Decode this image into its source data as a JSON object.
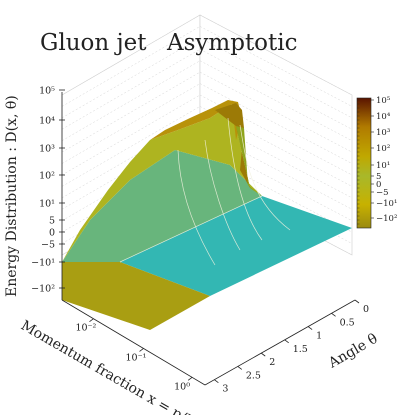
{
  "chart_data": {
    "type": "surface3d",
    "title_left": "Gluon jet",
    "title_right": "Asymptotic",
    "zlabel": "Energy Distribution : D(x, θ)",
    "xlabel": "Momentum fraction x = p/E",
    "ylabel": "Angle θ",
    "x_scale": "log",
    "x_ticks": [
      "10⁻²",
      "10⁻¹",
      "10⁰"
    ],
    "y_ticks": [
      "0",
      "0.5",
      "1",
      "1.5",
      "2",
      "2.5",
      "3"
    ],
    "z_scale": "symlog",
    "z_ticks": [
      "10⁵",
      "10⁴",
      "10³",
      "10²",
      "10¹",
      "5",
      "0",
      "−5",
      "−10¹",
      "−10²"
    ],
    "colorbar_ticks": [
      "10⁵",
      "10⁴",
      "10³",
      "10²",
      "10¹",
      "5",
      "0",
      "−5",
      "−10¹",
      "−10²"
    ],
    "colormap": [
      "#2eb9b2",
      "#62bc7a",
      "#a8b82a",
      "#c0a800",
      "#b58a00",
      "#8a4a00",
      "#5a1400"
    ],
    "grid": true
  }
}
